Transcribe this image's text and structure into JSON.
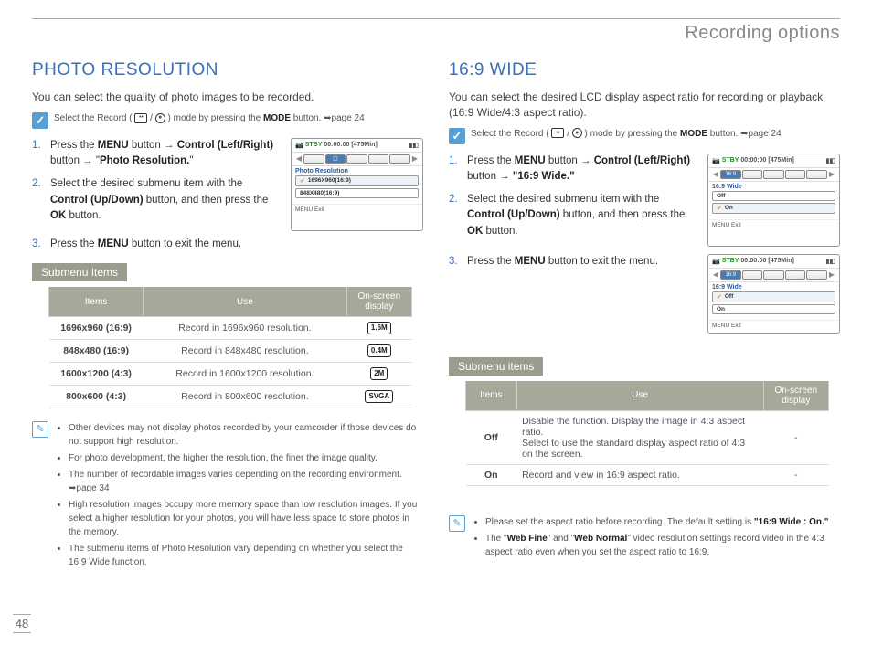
{
  "header": {
    "title": "Recording options"
  },
  "page_number": "48",
  "left": {
    "title": "PHOTO RESOLUTION",
    "intro": "You can select the quality of photo images to be recorded.",
    "precheck": {
      "prefix": "Select the Record (",
      "mid": " / ",
      "suffix": ") mode by pressing the ",
      "mode": "MODE",
      "tail": " button. ➥page 24"
    },
    "steps": [
      {
        "num": "1.",
        "html": "Press the <b>MENU</b> button → <b>Control (Left/Right)</b> button → \"<b>Photo Resolution.</b>\""
      },
      {
        "num": "2.",
        "html": "Select the desired submenu item with the <b>Control (Up/Down)</b> button, and then press the <b>OK</b> button."
      },
      {
        "num": "3.",
        "html": "Press the <b>MENU</b> button to exit the menu."
      }
    ],
    "lcd": {
      "stby": "STBY",
      "time": "00:00:00",
      "remain": "[475Min]",
      "label": "Photo Resolution",
      "items": [
        "1696X960(16:9)",
        "848X480(16:9)"
      ],
      "footer": "MENU Exit"
    },
    "submenu_label": "Submenu Items",
    "table": {
      "headers": [
        "Items",
        "Use",
        "On-screen display"
      ],
      "rows": [
        [
          "1696x960 (16:9)",
          "Record in 1696x960 resolution.",
          "1.6M"
        ],
        [
          "848x480 (16:9)",
          "Record in 848x480 resolution.",
          "0.4M"
        ],
        [
          "1600x1200 (4:3)",
          "Record in 1600x1200 resolution.",
          "2M"
        ],
        [
          "800x600 (4:3)",
          "Record in 800x600 resolution.",
          "SVGA"
        ]
      ]
    },
    "notes": [
      "Other devices may not display photos recorded by your camcorder if those devices do not support high resolution.",
      "For photo development, the higher the resolution, the finer the image quality.",
      "The number of recordable images varies depending on the recording environment. ➥page 34",
      "High resolution images occupy more memory space than low resolution images. If you select a higher resolution for your photos, you will have less space to store photos in the memory.",
      "The submenu items of Photo Resolution vary depending on whether you select the 16:9 Wide function."
    ]
  },
  "right": {
    "title": "16:9 WIDE",
    "intro": "You can select the desired LCD display aspect ratio for recording or playback (16:9 Wide/4:3 aspect ratio).",
    "precheck": {
      "prefix": "Select the Record (",
      "mid": " / ",
      "suffix": ") mode by pressing the ",
      "mode": "MODE",
      "tail": " button. ➥page 24"
    },
    "steps": [
      {
        "num": "1.",
        "html": "Press the <b>MENU</b> button → <b>Control (Left/Right)</b> button → <b>\"16:9 Wide.\"</b>"
      },
      {
        "num": "2.",
        "html": "Select the desired submenu item with the <b>Control (Up/Down)</b> button, and then press the <b>OK</b> button."
      },
      {
        "num": "3.",
        "html": "Press the <b>MENU</b> button to exit the menu."
      }
    ],
    "lcd1": {
      "stby": "STBY",
      "time": "00:00:00",
      "remain": "[475Min]",
      "label": "16:9 Wide",
      "items": [
        "Off",
        "On"
      ],
      "sel": 1,
      "footer": "MENU Exit"
    },
    "lcd2": {
      "stby": "STBY",
      "time": "00:00:00",
      "remain": "[475Min]",
      "label": "16:9 Wide",
      "items": [
        "Off",
        "On"
      ],
      "sel": 0,
      "footer": "MENU Exit"
    },
    "submenu_label": "Submenu items",
    "table": {
      "headers": [
        "Items",
        "Use",
        "On-screen display"
      ],
      "rows": [
        [
          "Off",
          "Disable the function. Display the image in 4:3 aspect ratio.\nSelect to use the standard display aspect ratio of 4:3 on the screen.",
          "-"
        ],
        [
          "On",
          "Record and view in 16:9 aspect ratio.",
          "-"
        ]
      ]
    },
    "notes_html": [
      "Please set the aspect ratio before recording. The default setting is <b>\"16:9 Wide : On.\"</b>",
      "The \"<b>Web Fine</b>\" and \"<b>Web Normal</b>\" video resolution settings record video in the 4:3 aspect ratio even when you set the aspect ratio to 16:9."
    ]
  },
  "colors": {
    "accent": "#3a6fb7",
    "header_gray": "#888888",
    "tag_bg": "#9c9c8e",
    "table_header_bg": "#a8a89a",
    "precheck_bg": "#5a9fd4"
  }
}
